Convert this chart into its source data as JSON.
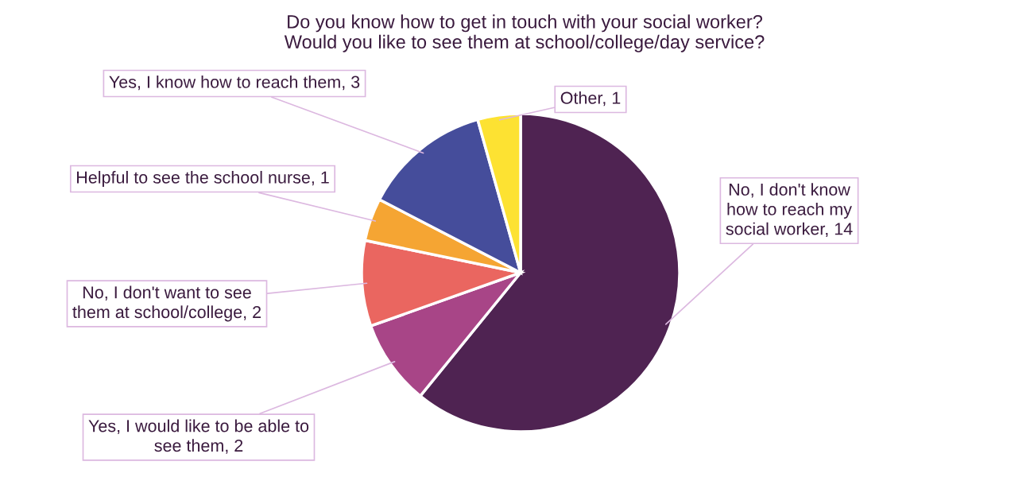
{
  "chart_data": {
    "type": "pie",
    "title": "Do you know how to get in touch with your social worker?\nWould you like to see them at school/college/day service?",
    "categories": [
      "No, I don't know\nhow to reach my\nsocial worker, 14",
      "Yes, I would like to be able to\nsee them, 2",
      "No, I don't want to see\nthem at school/college, 2",
      "Helpful to see the school nurse, 1",
      "Yes, I know how to reach them, 3",
      "Other, 1"
    ],
    "values": [
      14,
      2,
      2,
      1,
      3,
      1
    ],
    "colors": [
      "#4f2352",
      "#a84587",
      "#ea6660",
      "#f5a533",
      "#454d9b",
      "#fde232"
    ]
  }
}
